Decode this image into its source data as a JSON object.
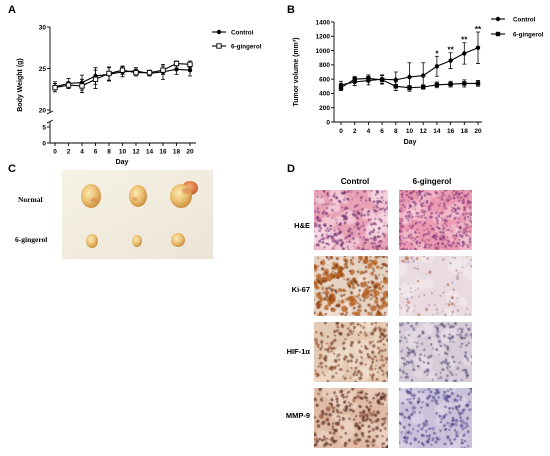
{
  "panel_letters": {
    "a": "A",
    "b": "B",
    "c": "C",
    "d": "D"
  },
  "chart_data": [
    {
      "type": "line",
      "xlabel": "Day",
      "ylabel": "Body Weight (g)",
      "x": [
        0,
        2,
        4,
        6,
        8,
        10,
        12,
        14,
        16,
        18,
        20
      ],
      "xticks": [
        0,
        2,
        4,
        6,
        8,
        10,
        12,
        14,
        16,
        18,
        20
      ],
      "yticks": [
        0,
        5,
        20,
        25,
        30
      ],
      "ylim": [
        0,
        30
      ],
      "y_break": [
        5,
        20
      ],
      "grid": false,
      "legend": "top-right",
      "series": [
        {
          "name": "Control",
          "values": [
            22.8,
            23.2,
            23.3,
            24.1,
            24.3,
            24.6,
            24.7,
            24.4,
            24.6,
            24.9,
            24.8
          ],
          "errors": [
            0.6,
            0.6,
            0.9,
            1.0,
            0.8,
            0.6,
            0.4,
            0.3,
            0.9,
            0.6,
            0.7
          ]
        },
        {
          "name": "6-gingerol",
          "values": [
            22.7,
            23.0,
            22.9,
            23.7,
            24.4,
            24.8,
            24.5,
            24.5,
            24.8,
            25.6,
            25.5
          ],
          "errors": [
            0.5,
            0.4,
            0.8,
            1.1,
            0.8,
            0.5,
            0.4,
            0.3,
            0.5,
            0.3,
            0.4
          ]
        }
      ]
    },
    {
      "type": "line",
      "xlabel": "Day",
      "ylabel": "Tumor volume (mm³)",
      "x": [
        0,
        2,
        4,
        6,
        8,
        10,
        12,
        14,
        16,
        18,
        20
      ],
      "xticks": [
        0,
        2,
        4,
        6,
        8,
        10,
        12,
        14,
        16,
        18,
        20
      ],
      "yticks": [
        0,
        200,
        400,
        600,
        800,
        1000,
        1200,
        1400
      ],
      "ylim": [
        0,
        1400
      ],
      "grid": false,
      "legend": "top-right",
      "series": [
        {
          "name": "Control",
          "values": [
            520,
            560,
            580,
            600,
            590,
            630,
            650,
            780,
            860,
            960,
            1040
          ],
          "errors": [
            50,
            50,
            60,
            60,
            110,
            200,
            180,
            140,
            110,
            150,
            220
          ]
        },
        {
          "name": "6-gingerol",
          "values": [
            480,
            600,
            610,
            590,
            500,
            480,
            490,
            520,
            530,
            540,
            540
          ],
          "errors": [
            40,
            40,
            50,
            60,
            60,
            30,
            30,
            40,
            40,
            50,
            40
          ]
        }
      ],
      "annotations": [
        {
          "x": 14,
          "text": "*"
        },
        {
          "x": 16,
          "text": "**"
        },
        {
          "x": 18,
          "text": "**"
        },
        {
          "x": 20,
          "text": "**"
        }
      ]
    }
  ],
  "photo": {
    "rows": [
      "Normal",
      "6-gingerol"
    ]
  },
  "histology": {
    "columns": [
      "Control",
      "6-gingerol"
    ],
    "rows": [
      "H&E",
      "Ki-67",
      "HIF-1α",
      "MMP-9"
    ],
    "stain_colors": [
      [
        {
          "background": "#e8a2b6",
          "patch": "#f6dbe3",
          "nucleus": "#6e2c6e",
          "blob": "#a04a86"
        },
        {
          "background": "#ec9bb2",
          "patch": "#f7c9d6",
          "nucleus": "#7d3478",
          "blob": "#c0608e"
        }
      ],
      [
        {
          "background": "#e6d3c4",
          "patch": "#f1e4d8",
          "nucleus": "#7a3a14",
          "blob": "#b5601f"
        },
        {
          "background": "#eadbe1",
          "patch": "#f4ebee",
          "nucleus": "#a07a9a",
          "blob": "#b8672e"
        }
      ],
      [
        {
          "background": "#e4cab4",
          "patch": "#f0dfcf",
          "nucleus": "#7a4128",
          "blob": "#a8694a"
        },
        {
          "background": "#d8ccd8",
          "patch": "#e8e0e8",
          "nucleus": "#5f557f",
          "blob": "#8d7f9f"
        }
      ],
      [
        {
          "background": "#e0bca6",
          "patch": "#efd6c6",
          "nucleus": "#5e3026",
          "blob": "#9a5a44"
        },
        {
          "background": "#cac2da",
          "patch": "#ddd6e8",
          "nucleus": "#4f4488",
          "blob": "#8378b0"
        }
      ]
    ]
  }
}
